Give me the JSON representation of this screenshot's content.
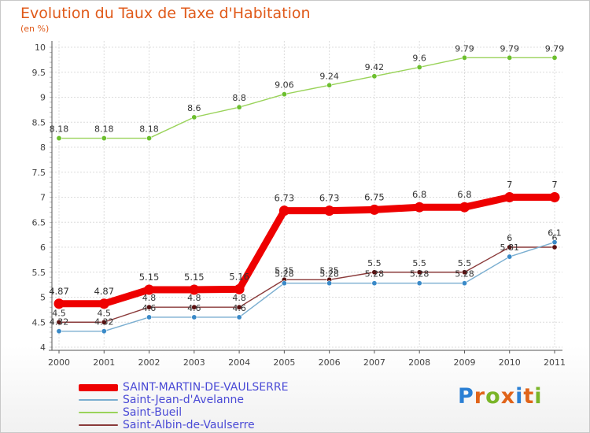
{
  "chart_data": {
    "type": "line",
    "title": "Evolution du Taux de Taxe d'Habitation",
    "subtitle": "(en %)",
    "xlabel": "",
    "ylabel": "",
    "ylim": [
      4,
      10
    ],
    "yticks": [
      "4",
      "4.5",
      "5",
      "5.5",
      "6",
      "6.5",
      "7",
      "7.5",
      "8",
      "8.5",
      "9",
      "9.5",
      "10"
    ],
    "ytick_values": [
      4,
      4.5,
      5,
      5.5,
      6,
      6.5,
      7,
      7.5,
      8,
      8.5,
      9,
      9.5,
      10
    ],
    "categories": [
      "2000",
      "2001",
      "2002",
      "2003",
      "2004",
      "2005",
      "2006",
      "2007",
      "2008",
      "2009",
      "2010",
      "2011"
    ],
    "grid": true,
    "legend_position": "bottom-left",
    "series": [
      {
        "name": "Saint-Bueil",
        "color": "#9ad35a",
        "marker": "#6cbf2e",
        "width": "thin",
        "values": [
          8.18,
          8.18,
          8.18,
          8.6,
          8.8,
          9.06,
          9.24,
          9.42,
          9.6,
          9.79,
          9.79,
          9.79
        ],
        "labels": [
          "8.18",
          "8.18",
          "8.18",
          "8.6",
          "8.8",
          "9.06",
          "9.24",
          "9.42",
          "9.6",
          "9.79",
          "9.79",
          "9.79"
        ]
      },
      {
        "name": "Saint-Albin-de-Vaulserre",
        "color": "#8a3a3a",
        "marker": "#5a1010",
        "width": "thin",
        "values": [
          4.5,
          4.5,
          4.8,
          4.8,
          4.8,
          5.35,
          5.35,
          5.5,
          5.5,
          5.5,
          6.0,
          6.0
        ],
        "labels": [
          "4.5",
          "4.5",
          "4.8",
          "4.8",
          "4.8",
          "5.35",
          "5.35",
          "5.5",
          "5.5",
          "5.5",
          "6",
          "6"
        ]
      },
      {
        "name": "Saint-Jean-d'Avelanne",
        "color": "#7aaed0",
        "marker": "#3a8ac8",
        "width": "thin",
        "values": [
          4.32,
          4.32,
          4.6,
          4.6,
          4.6,
          5.28,
          5.28,
          5.28,
          5.28,
          5.28,
          5.81,
          6.1
        ],
        "labels": [
          "4.32",
          "4.32",
          "4.6",
          "4.6",
          "4.6",
          "5.28",
          "5.28",
          "5.28",
          "5.28",
          "5.28",
          "5.81",
          "6.1"
        ]
      },
      {
        "name": "SAINT-MARTIN-DE-VAULSERRE",
        "color": "#ee0000",
        "marker": "#ee0000",
        "width": "thick",
        "values": [
          4.87,
          4.87,
          5.15,
          5.15,
          5.16,
          6.73,
          6.73,
          6.75,
          6.8,
          6.8,
          7.0,
          7.0
        ],
        "labels": [
          "4.87",
          "4.87",
          "5.15",
          "5.15",
          "5.16",
          "6.73",
          "6.73",
          "6.75",
          "6.8",
          "6.8",
          "7",
          "7"
        ]
      }
    ]
  },
  "legend": [
    {
      "label": "SAINT-MARTIN-DE-VAULSERRE",
      "color": "#ee0000",
      "style": "thick"
    },
    {
      "label": "Saint-Jean-d'Avelanne",
      "color": "#7aaed0",
      "style": "thin"
    },
    {
      "label": "Saint-Bueil",
      "color": "#9ad35a",
      "style": "thin"
    },
    {
      "label": "Saint-Albin-de-Vaulserre",
      "color": "#8a3a3a",
      "style": "thin"
    }
  ],
  "brand": {
    "letters": [
      "P",
      "r",
      "o",
      "x",
      "i",
      "t",
      "i"
    ],
    "colors": [
      "#2a7fd4",
      "#e0641a",
      "#7ab528",
      "#e0641a",
      "#2a7fd4",
      "#e0641a",
      "#7ab528"
    ]
  }
}
